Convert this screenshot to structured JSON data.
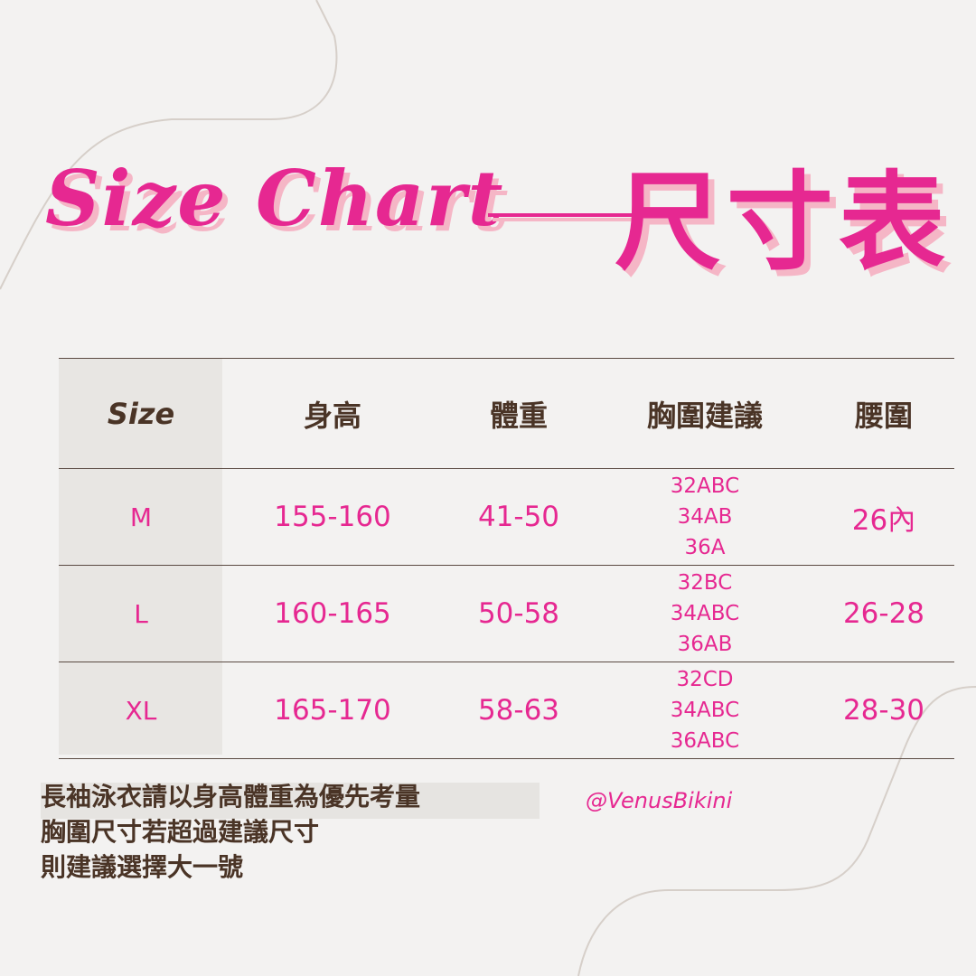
{
  "title": {
    "english": "Size Chart",
    "chinese": "尺寸表"
  },
  "colors": {
    "accent": "#e62891",
    "shadow": "#f5b6c6",
    "text": "#4a3426",
    "background": "#f3f2f1",
    "size_column": "#e8e6e3"
  },
  "table": {
    "headers": [
      "Size",
      "身高",
      "體重",
      "胸圍建議",
      "腰圍"
    ],
    "rows": [
      {
        "size": "M",
        "height": "155-160",
        "weight": "41-50",
        "bust": [
          "32ABC",
          "34AB",
          "36A"
        ],
        "waist": "26內"
      },
      {
        "size": "L",
        "height": "160-165",
        "weight": "50-58",
        "bust": [
          "32BC",
          "34ABC",
          "36AB"
        ],
        "waist": "26-28"
      },
      {
        "size": "XL",
        "height": "165-170",
        "weight": "58-63",
        "bust": [
          "32CD",
          "34ABC",
          "36ABC"
        ],
        "waist": "28-30"
      }
    ]
  },
  "notes": [
    "長袖泳衣請以身高體重為優先考量",
    "胸圍尺寸若超過建議尺寸",
    "則建議選擇大一號"
  ],
  "handle": "@VenusBikini"
}
